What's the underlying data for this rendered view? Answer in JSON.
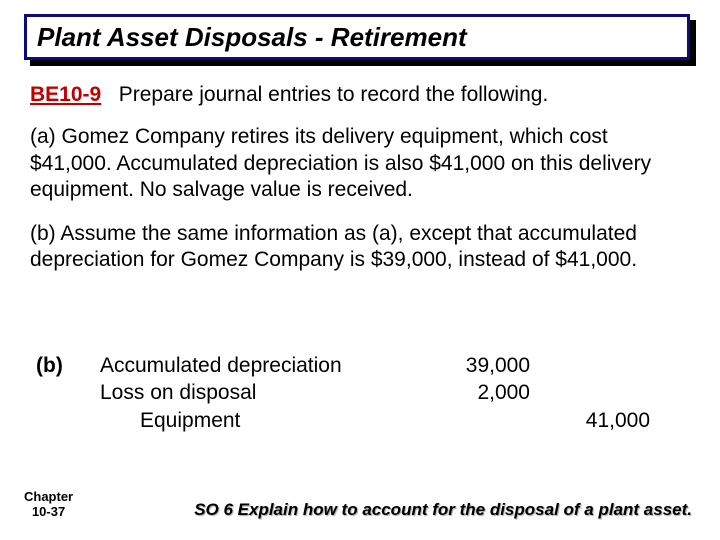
{
  "title": {
    "text": "Plant Asset Disposals - Retirement",
    "border_color": "#0b0b7a",
    "bg_color": "#ffffff",
    "shadow_color": "#000000"
  },
  "exercise": {
    "label": "BE10-9",
    "label_color": "#c00000",
    "instruction": "Prepare journal entries to record the following."
  },
  "para_a": "(a) Gomez Company retires its delivery equipment, which cost $41,000.  Accumulated depreciation is also $41,000 on this delivery equipment. No salvage value is received.",
  "para_b": "(b) Assume the same information as (a), except that accumulated depreciation for Gomez Company is $39,000, instead of $41,000.",
  "journal": {
    "label": "(b)",
    "rows": [
      {
        "account": "Accumulated depreciation",
        "indent": 1,
        "debit": "39,000",
        "credit": ""
      },
      {
        "account": "Loss on disposal",
        "indent": 1,
        "debit": "2,000",
        "credit": ""
      },
      {
        "account": "Equipment",
        "indent": 2,
        "debit": "",
        "credit": "41,000"
      }
    ]
  },
  "footer": {
    "chapter_line1": "Chapter",
    "chapter_line2": "10-37",
    "so": "SO 6  Explain how to account for the disposal of a plant asset."
  },
  "fontsizes": {
    "title": 26,
    "body": 21,
    "footer_chapter": 13,
    "footer_so": 17
  },
  "colors": {
    "text": "#000000",
    "background": "#ffffff"
  }
}
